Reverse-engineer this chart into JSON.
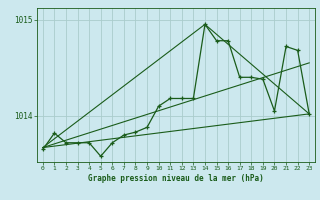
{
  "xlabel": "Graphe pression niveau de la mer (hPa)",
  "background_color": "#cce8ee",
  "grid_color": "#aacccc",
  "line_color": "#1a5c1a",
  "yticks": [
    1014,
    1015
  ],
  "xticks": [
    0,
    1,
    2,
    3,
    4,
    5,
    6,
    7,
    8,
    9,
    10,
    11,
    12,
    13,
    14,
    15,
    16,
    17,
    18,
    19,
    20,
    21,
    22,
    23
  ],
  "ylim": [
    1013.52,
    1015.12
  ],
  "xlim": [
    -0.5,
    23.5
  ],
  "main_series": [
    [
      0,
      1013.65
    ],
    [
      1,
      1013.82
    ],
    [
      2,
      1013.72
    ],
    [
      3,
      1013.72
    ],
    [
      4,
      1013.72
    ],
    [
      5,
      1013.58
    ],
    [
      6,
      1013.72
    ],
    [
      7,
      1013.8
    ],
    [
      8,
      1013.83
    ],
    [
      9,
      1013.88
    ],
    [
      10,
      1014.1
    ],
    [
      11,
      1014.18
    ],
    [
      12,
      1014.18
    ],
    [
      13,
      1014.18
    ],
    [
      14,
      1014.95
    ],
    [
      15,
      1014.78
    ],
    [
      16,
      1014.78
    ],
    [
      17,
      1014.4
    ],
    [
      18,
      1014.4
    ],
    [
      19,
      1014.38
    ],
    [
      20,
      1014.05
    ],
    [
      21,
      1014.72
    ],
    [
      22,
      1014.68
    ],
    [
      23,
      1014.02
    ]
  ],
  "trend_line1": [
    [
      0,
      1013.67
    ],
    [
      23,
      1014.02
    ]
  ],
  "trend_line2": [
    [
      0,
      1013.67
    ],
    [
      23,
      1014.55
    ]
  ],
  "trend_line3": [
    [
      0,
      1013.67
    ],
    [
      14,
      1014.95
    ],
    [
      23,
      1014.02
    ]
  ]
}
